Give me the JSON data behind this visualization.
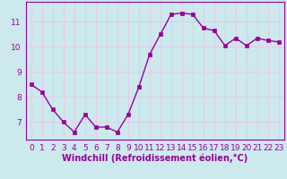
{
  "x": [
    0,
    1,
    2,
    3,
    4,
    5,
    6,
    7,
    8,
    9,
    10,
    11,
    12,
    13,
    14,
    15,
    16,
    17,
    18,
    19,
    20,
    21,
    22,
    23
  ],
  "y": [
    8.5,
    8.2,
    7.5,
    7.0,
    6.6,
    7.3,
    6.8,
    6.8,
    6.6,
    7.3,
    8.4,
    9.7,
    10.5,
    11.3,
    11.35,
    11.3,
    10.75,
    10.65,
    10.05,
    10.35,
    10.05,
    10.35,
    10.25,
    10.2
  ],
  "line_color": "#990099",
  "marker": "s",
  "markersize": 2.5,
  "linewidth": 1.0,
  "background_color": "#cce9ee",
  "grid_color": "#e8c8e8",
  "xlabel": "Windchill (Refroidissement éolien,°C)",
  "xlabel_color": "#990099",
  "xlabel_fontsize": 7.0,
  "tick_color": "#990099",
  "tick_fontsize": 6.5,
  "ylim": [
    6.3,
    11.8
  ],
  "yticks": [
    7,
    8,
    9,
    10,
    11
  ],
  "xticks": [
    0,
    1,
    2,
    3,
    4,
    5,
    6,
    7,
    8,
    9,
    10,
    11,
    12,
    13,
    14,
    15,
    16,
    17,
    18,
    19,
    20,
    21,
    22,
    23
  ],
  "xlim": [
    -0.5,
    23.5
  ]
}
